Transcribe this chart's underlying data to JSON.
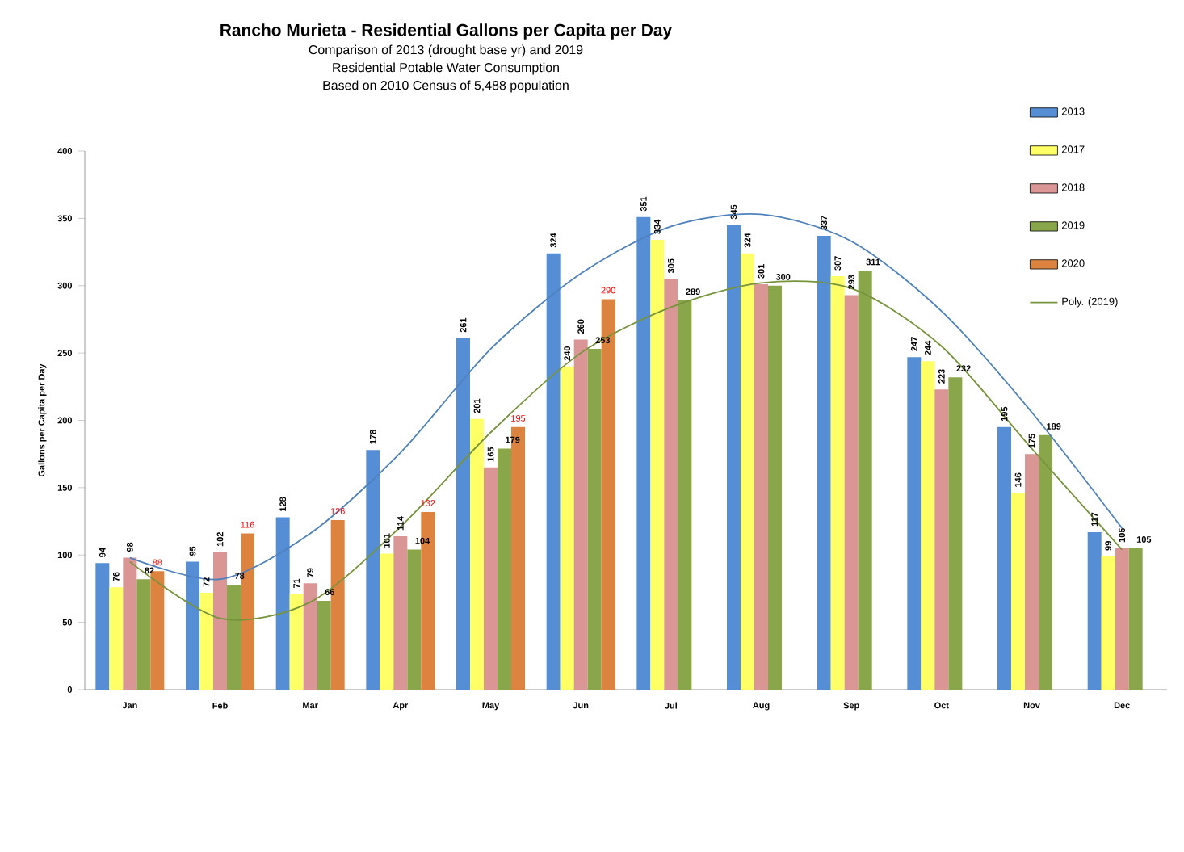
{
  "chart_data": {
    "type": "bar",
    "title": "Rancho Murieta - Residential Gallons per Capita per Day",
    "subtitle": "Comparison of 2013 (drought base yr) and 2019",
    "annotations": [
      "Residential Potable Water Consumption",
      "Based on 2010 Census of 5,488 population"
    ],
    "ylabel": "Gallons per Capita per Day",
    "categories": [
      "Jan",
      "Feb",
      "Mar",
      "Apr",
      "May",
      "Jun",
      "Jul",
      "Aug",
      "Sep",
      "Oct",
      "Nov",
      "Dec"
    ],
    "series": [
      {
        "name": "2013",
        "color": "#558ed5",
        "values": [
          94,
          95,
          128,
          178,
          261,
          324,
          351,
          345,
          337,
          247,
          195,
          117
        ],
        "value_labels": [
          "94",
          "95",
          "128",
          "178",
          "261",
          "324",
          "351",
          "345",
          "337",
          "247",
          "195",
          "117"
        ]
      },
      {
        "name": "2017",
        "color": "#ffff66",
        "values": [
          76,
          72,
          71,
          101,
          201,
          240,
          334,
          324,
          307,
          244,
          146,
          99
        ],
        "value_labels": [
          "76",
          "72",
          "71",
          "101",
          "201",
          "240",
          "334",
          "324",
          "307",
          "244",
          "146",
          "99"
        ]
      },
      {
        "name": "2018",
        "color": "#d99694",
        "values": [
          98,
          102,
          79,
          114,
          165,
          260,
          305,
          301,
          293,
          223,
          175,
          105
        ],
        "value_labels": [
          "98",
          "102",
          "79",
          "114",
          "165",
          "260",
          "305",
          "301",
          "293",
          "223",
          "175",
          "105"
        ]
      },
      {
        "name": "2019",
        "color": "#8aa64b",
        "values": [
          82,
          78,
          66,
          104,
          179,
          253,
          289,
          300,
          311,
          232,
          189,
          105
        ],
        "value_labels": [
          "82",
          "78",
          "66",
          "104",
          "179",
          "253",
          "289",
          "300",
          "311",
          "232",
          "189",
          "105"
        ]
      },
      {
        "name": "2020",
        "color": "#dd8340",
        "values": [
          88,
          116,
          126,
          132,
          195,
          290,
          null,
          null,
          null,
          null,
          null,
          null
        ],
        "value_labels": [
          "88",
          "116",
          "126",
          "132",
          "195",
          "290",
          null,
          null,
          null,
          null,
          null,
          null
        ]
      },
      {
        "type": "line",
        "color": "#4f81bd",
        "values": [
          98,
          82,
          116,
          176,
          253,
          309,
          344,
          353,
          333,
          281,
          206,
          120
        ]
      },
      {
        "type": "line",
        "name": "Poly. (2019)",
        "color": "#77933c",
        "values": [
          95,
          53,
          65,
          121,
          191,
          250,
          284,
          302,
          298,
          255,
          179,
          104
        ]
      }
    ],
    "ylim": [
      0,
      400
    ],
    "yticks": [
      0,
      50,
      100,
      150,
      200,
      250,
      300,
      350,
      400
    ],
    "legend": "top right",
    "grid": false
  }
}
